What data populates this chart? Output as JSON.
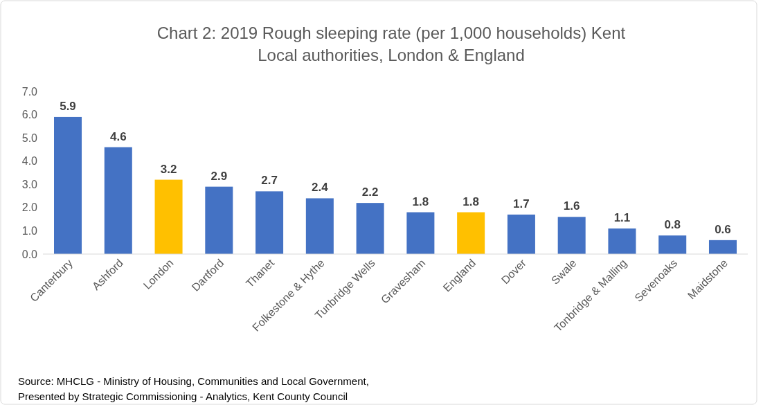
{
  "chart_data": {
    "type": "bar",
    "title": "Chart 2: 2019 Rough sleeping rate (per 1,000 households) Kent Local authorities, London & England",
    "categories": [
      "Canterbury",
      "Ashford",
      "London",
      "Dartford",
      "Thanet",
      "Folkestone & Hythe",
      "Tunbridge Wells",
      "Gravesham",
      "England",
      "Dover",
      "Swale",
      "Tonbridge & Malling",
      "Sevenoaks",
      "Maidstone"
    ],
    "values": [
      5.9,
      4.6,
      3.2,
      2.9,
      2.7,
      2.4,
      2.2,
      1.8,
      1.8,
      1.7,
      1.6,
      1.1,
      0.8,
      0.6
    ],
    "colors": [
      "#4472c4",
      "#4472c4",
      "#ffc000",
      "#4472c4",
      "#4472c4",
      "#4472c4",
      "#4472c4",
      "#4472c4",
      "#ffc000",
      "#4472c4",
      "#4472c4",
      "#4472c4",
      "#4472c4",
      "#4472c4"
    ],
    "ylim": [
      0,
      7
    ],
    "yticks": [
      {
        "value": 0,
        "label": "0.0"
      },
      {
        "value": 1,
        "label": "1.0"
      },
      {
        "value": 2,
        "label": "2.0"
      },
      {
        "value": 3,
        "label": "3.0"
      },
      {
        "value": 4,
        "label": "4.0"
      },
      {
        "value": 5,
        "label": "5.0"
      },
      {
        "value": 6,
        "label": "6.0"
      },
      {
        "value": 7,
        "label": "7.0"
      }
    ],
    "data_labels": true,
    "grid": false,
    "annotations": [
      "Source: MHCLG - Ministry of Housing, Communities and Local Government,",
      "Presented by Strategic Commissioning - Analytics, Kent County Council"
    ]
  }
}
